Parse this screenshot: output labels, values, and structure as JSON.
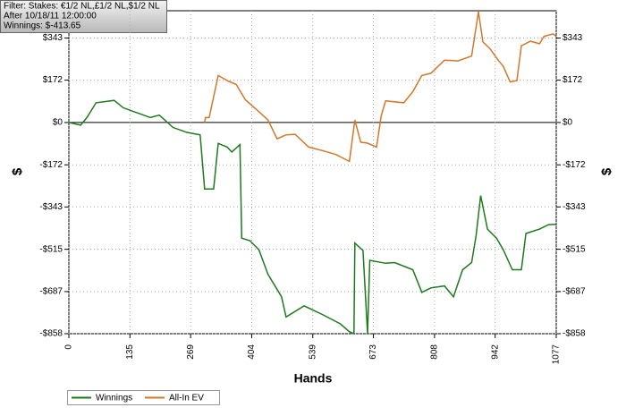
{
  "chart_data": {
    "type": "line",
    "annotations": [
      "Filter: Stakes: €1/2 NL,£1/2 NL,$1/2 NL",
      "After 10/18/11 12:00:00",
      "Winnings: $-413.65"
    ],
    "x_label": "Hands",
    "y_label": "$",
    "xlim": [
      0,
      1077
    ],
    "xticks": [
      0,
      135,
      269,
      404,
      539,
      673,
      808,
      942,
      1077
    ],
    "ylim": [
      -858,
      454
    ],
    "yticks": [
      {
        "value": 343,
        "label": "$343"
      },
      {
        "value": 172,
        "label": "$172"
      },
      {
        "value": 0,
        "label": "$0"
      },
      {
        "value": -172,
        "label": "-$172"
      },
      {
        "value": -343,
        "label": "-$343"
      },
      {
        "value": -515,
        "label": "-$515"
      },
      {
        "value": -687,
        "label": "-$687"
      },
      {
        "value": -858,
        "label": "-$858"
      }
    ],
    "grid": true,
    "legend": "bottom-left",
    "series": [
      {
        "name": "Winnings",
        "color": "#1e7a1e",
        "x": [
          0,
          26,
          40,
          60,
          100,
          120,
          150,
          180,
          200,
          230,
          260,
          290,
          300,
          320,
          330,
          350,
          360,
          378,
          382,
          400,
          420,
          440,
          470,
          480,
          520,
          560,
          600,
          620,
          630,
          632,
          650,
          660,
          665,
          700,
          720,
          760,
          780,
          800,
          830,
          850,
          870,
          890,
          900,
          910,
          925,
          945,
          960,
          980,
          1000,
          1010,
          1040,
          1060,
          1077
        ],
        "values": [
          0,
          -11,
          20,
          80,
          90,
          60,
          40,
          20,
          30,
          -20,
          -40,
          -50,
          -270,
          -270,
          -85,
          -100,
          -120,
          -90,
          -470,
          -480,
          -517,
          -617,
          -708,
          -790,
          -745,
          -780,
          -818,
          -850,
          -858,
          -490,
          -520,
          -858,
          -560,
          -572,
          -569,
          -598,
          -690,
          -672,
          -664,
          -708,
          -598,
          -569,
          -459,
          -297,
          -433,
          -470,
          -517,
          -598,
          -598,
          -451,
          -433,
          -415,
          -413.65
        ]
      },
      {
        "name": "All-In EV",
        "color": "#d2782a",
        "x": [
          300,
          302,
          310,
          330,
          350,
          370,
          390,
          420,
          440,
          460,
          480,
          500,
          530,
          560,
          590,
          620,
          632,
          645,
          660,
          680,
          690,
          700,
          740,
          760,
          780,
          800,
          830,
          860,
          890,
          905,
          915,
          930,
          950,
          960,
          975,
          990,
          1000,
          1020,
          1040,
          1050,
          1070,
          1077
        ],
        "values": [
          0,
          20,
          20,
          191,
          170,
          154,
          92,
          44,
          10,
          -66,
          -50,
          -48,
          -100,
          -114,
          -130,
          -158,
          10,
          -80,
          -84,
          -100,
          26,
          88,
          80,
          125,
          191,
          200,
          253,
          250,
          270,
          450,
          327,
          301,
          250,
          228,
          165,
          170,
          312,
          330,
          320,
          350,
          360,
          350
        ]
      }
    ]
  }
}
